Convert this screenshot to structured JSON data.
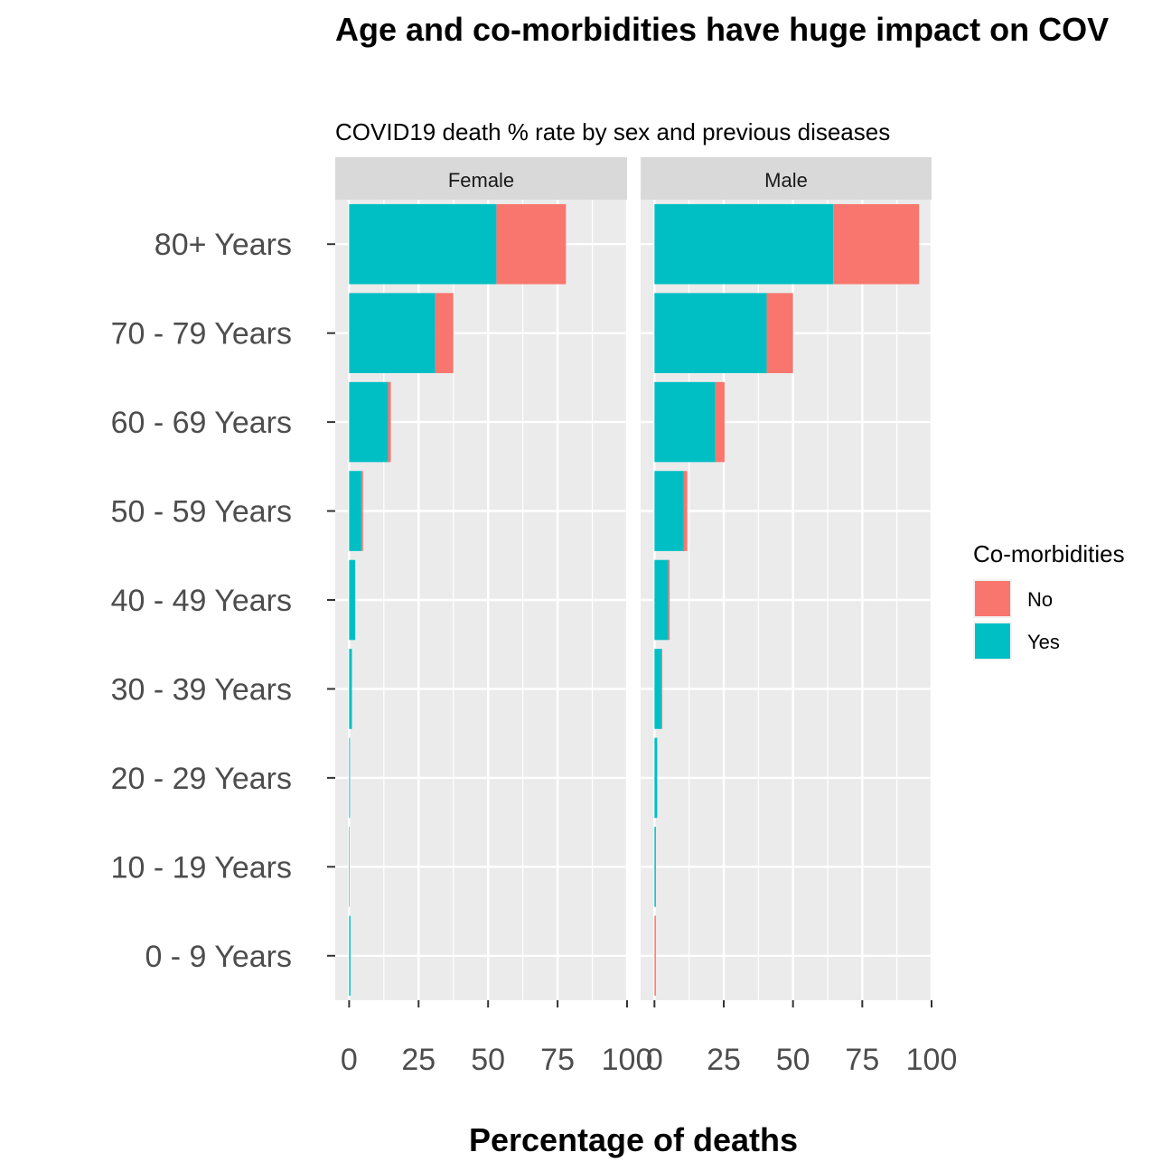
{
  "chart_data": {
    "type": "bar",
    "orientation": "horizontal",
    "stacked": true,
    "title": "Age and co-morbidities have huge impact on COV",
    "subtitle": "COVID19 death % rate by sex and previous diseases",
    "xlabel": "Percentage of deaths",
    "ylabel": "",
    "xlim": [
      -5,
      100
    ],
    "x_ticks": [
      "0",
      "25",
      "50",
      "75",
      "100"
    ],
    "categories": [
      "80+ Years",
      "70 - 79 Years",
      "60 - 69 Years",
      "50 - 59 Years",
      "40 - 49 Years",
      "30 - 39 Years",
      "20 - 29 Years",
      "10 - 19 Years",
      "0 - 9 Years"
    ],
    "legend": {
      "title": "Co-morbidities",
      "position": "right",
      "entries": [
        {
          "label": "No",
          "color": "#F8766D"
        },
        {
          "label": "Yes",
          "color": "#00BFC4"
        }
      ]
    },
    "grid": true,
    "panels": [
      {
        "name": "Female",
        "series": [
          {
            "name": "Yes",
            "color": "#00BFC4",
            "values": [
              53,
              31,
              14,
              4.5,
              2.2,
              1,
              0.3,
              0.2,
              0.5
            ]
          },
          {
            "name": "No",
            "color": "#F8766D",
            "values": [
              25,
              6.5,
              1,
              0.5,
              0,
              0,
              0,
              0,
              0
            ]
          }
        ]
      },
      {
        "name": "Male",
        "series": [
          {
            "name": "Yes",
            "color": "#00BFC4",
            "values": [
              64.5,
              40.5,
              22,
              10.5,
              5,
              2.5,
              1,
              0.5,
              0
            ]
          },
          {
            "name": "No",
            "color": "#F8766D",
            "values": [
              31,
              9.5,
              3.3,
              1.3,
              0.5,
              0.3,
              0,
              0,
              0.5
            ]
          }
        ]
      }
    ]
  }
}
